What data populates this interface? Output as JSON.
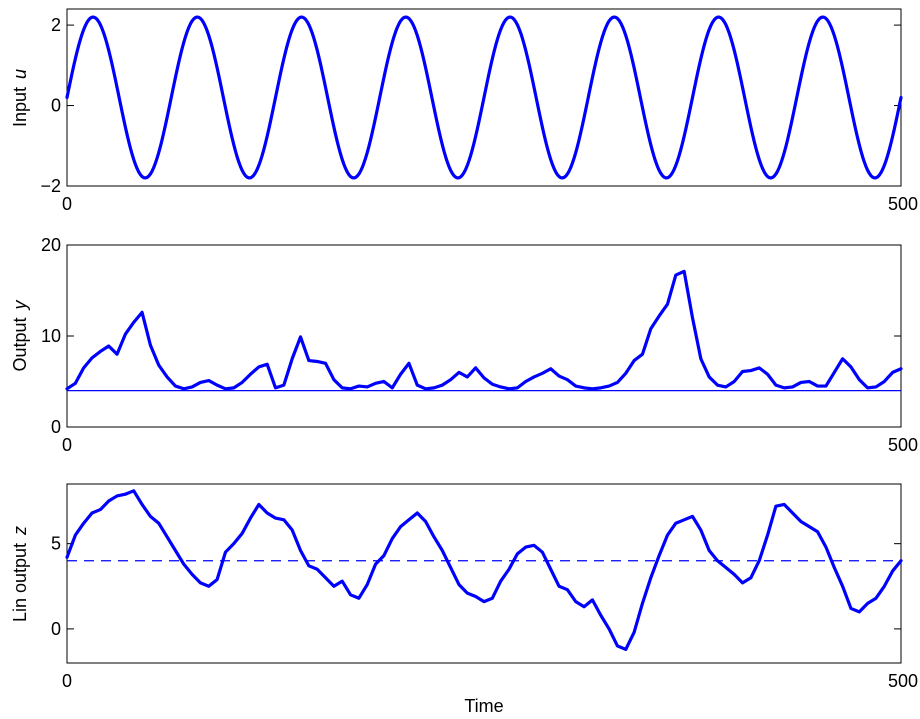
{
  "chart_data": [
    {
      "type": "line",
      "ylabel": "Input",
      "ylabel_var": "u",
      "xlim": [
        0,
        500
      ],
      "ylim": [
        -2,
        2.4
      ],
      "xticks": [
        0,
        500
      ],
      "yticks": [
        -2,
        0,
        2
      ],
      "xtick_labels": [
        "0",
        "500"
      ],
      "ytick_labels": [
        "−2",
        "0",
        "2"
      ],
      "grid": false,
      "line_color": "#0000ff",
      "series": [
        {
          "model": "sine",
          "offset": 0.2,
          "amplitude": 2.0,
          "period": 62.5,
          "phase_x": 0,
          "x_start": 0,
          "x_end": 500
        }
      ]
    },
    {
      "type": "line",
      "ylabel": "Output",
      "ylabel_var": "y",
      "xlim": [
        0,
        500
      ],
      "ylim": [
        0,
        20
      ],
      "xticks": [
        0,
        500
      ],
      "yticks": [
        0,
        10,
        20
      ],
      "xtick_labels": [
        "0",
        "500"
      ],
      "ytick_labels": [
        "0",
        "10",
        "20"
      ],
      "grid": false,
      "line_color": "#0000ff",
      "reference_line": {
        "y": 4,
        "style": "solid"
      },
      "series": [
        {
          "x": [
            0,
            5,
            10,
            15,
            20,
            25,
            30,
            35,
            40,
            45,
            50,
            55,
            60,
            65,
            70,
            75,
            80,
            85,
            90,
            95,
            100,
            105,
            110,
            115,
            120,
            125,
            130,
            135,
            140,
            145,
            150,
            155,
            160,
            165,
            170,
            175,
            180,
            185,
            190,
            195,
            200,
            205,
            210,
            215,
            220,
            225,
            230,
            235,
            240,
            245,
            250,
            255,
            260,
            265,
            270,
            275,
            280,
            285,
            290,
            295,
            300,
            305,
            310,
            315,
            320,
            325,
            330,
            335,
            340,
            345,
            350,
            355,
            360,
            365,
            370,
            375,
            380,
            385,
            390,
            395,
            400,
            405,
            410,
            415,
            420,
            425,
            430,
            435,
            440,
            445,
            450,
            455,
            460,
            465,
            470,
            475,
            480,
            485,
            490,
            495,
            500
          ],
          "y": [
            4.2,
            4.8,
            6.5,
            7.6,
            8.3,
            8.9,
            8.0,
            10.2,
            11.5,
            12.6,
            9.0,
            6.8,
            5.5,
            4.5,
            4.2,
            4.4,
            4.9,
            5.1,
            4.6,
            4.2,
            4.3,
            4.9,
            5.8,
            6.6,
            6.9,
            4.3,
            4.6,
            7.5,
            9.9,
            7.3,
            7.2,
            7.0,
            5.2,
            4.3,
            4.2,
            4.5,
            4.4,
            4.8,
            5.0,
            4.3,
            5.8,
            7.0,
            4.6,
            4.2,
            4.3,
            4.6,
            5.2,
            6.0,
            5.5,
            6.5,
            5.4,
            4.7,
            4.4,
            4.2,
            4.3,
            5.0,
            5.5,
            5.9,
            6.4,
            5.6,
            5.2,
            4.5,
            4.3,
            4.2,
            4.3,
            4.5,
            4.9,
            5.9,
            7.3,
            8.0,
            10.8,
            12.2,
            13.5,
            16.7,
            17.1,
            12.0,
            7.5,
            5.5,
            4.6,
            4.4,
            5.0,
            6.1,
            6.2,
            6.5,
            5.8,
            4.6,
            4.3,
            4.4,
            4.9,
            5.0,
            4.5,
            4.5,
            6.0,
            7.5,
            6.6,
            5.2,
            4.3,
            4.4,
            5.0,
            6.0,
            6.4
          ]
        }
      ]
    },
    {
      "type": "line",
      "ylabel": "Lin output",
      "ylabel_var": "z",
      "xlabel": "Time",
      "xlim": [
        0,
        500
      ],
      "ylim": [
        -2,
        8.5
      ],
      "xticks": [
        0,
        500
      ],
      "yticks": [
        0,
        5
      ],
      "xtick_labels": [
        "0",
        "500"
      ],
      "ytick_labels": [
        "0",
        "5"
      ],
      "grid": false,
      "line_color": "#0000ff",
      "reference_line": {
        "y": 4,
        "style": "dashed"
      },
      "series": [
        {
          "x": [
            0,
            5,
            10,
            15,
            20,
            25,
            30,
            35,
            40,
            45,
            50,
            55,
            60,
            65,
            70,
            75,
            80,
            85,
            90,
            95,
            100,
            105,
            110,
            115,
            120,
            125,
            130,
            135,
            140,
            145,
            150,
            155,
            160,
            165,
            170,
            175,
            180,
            185,
            190,
            195,
            200,
            205,
            210,
            215,
            220,
            225,
            230,
            235,
            240,
            245,
            250,
            255,
            260,
            265,
            270,
            275,
            280,
            285,
            290,
            295,
            300,
            305,
            310,
            315,
            320,
            325,
            330,
            335,
            340,
            345,
            350,
            355,
            360,
            365,
            370,
            375,
            380,
            385,
            390,
            395,
            400,
            405,
            410,
            415,
            420,
            425,
            430,
            435,
            440,
            445,
            450,
            455,
            460,
            465,
            470,
            475,
            480,
            485,
            490,
            495,
            500
          ],
          "y": [
            4.2,
            5.5,
            6.2,
            6.8,
            7.0,
            7.5,
            7.8,
            7.9,
            8.1,
            7.3,
            6.6,
            6.2,
            5.4,
            4.6,
            3.8,
            3.2,
            2.7,
            2.5,
            2.9,
            4.5,
            5.0,
            5.6,
            6.5,
            7.3,
            6.8,
            6.5,
            6.4,
            5.8,
            4.6,
            3.7,
            3.5,
            3.0,
            2.5,
            2.8,
            2.0,
            1.8,
            2.6,
            3.8,
            4.3,
            5.3,
            6.0,
            6.4,
            6.8,
            6.3,
            5.4,
            4.6,
            3.6,
            2.6,
            2.1,
            1.9,
            1.6,
            1.8,
            2.8,
            3.5,
            4.4,
            4.8,
            4.9,
            4.5,
            3.5,
            2.5,
            2.3,
            1.6,
            1.3,
            1.7,
            0.8,
            0.0,
            -1.0,
            -1.2,
            -0.2,
            1.5,
            3.0,
            4.3,
            5.5,
            6.2,
            6.4,
            6.6,
            5.8,
            4.6,
            4.0,
            3.6,
            3.2,
            2.7,
            3.0,
            4.0,
            5.5,
            7.2,
            7.3,
            6.8,
            6.3,
            6.0,
            5.7,
            4.8,
            3.6,
            2.5,
            1.2,
            1.0,
            1.5,
            1.8,
            2.5,
            3.4,
            4.0
          ]
        }
      ]
    }
  ]
}
